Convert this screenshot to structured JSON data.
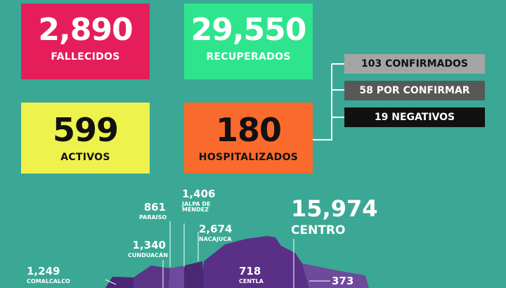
{
  "cards": {
    "fallecidos": {
      "value": "2,890",
      "label": "FALLECIDOS",
      "color": "#e51e5b"
    },
    "recuperados": {
      "value": "29,550",
      "label": "RECUPERADOS",
      "color": "#2ee58d"
    },
    "activos": {
      "value": "599",
      "label": "ACTIVOS",
      "color": "#eef24d"
    },
    "hospitalizados": {
      "value": "180",
      "label": "HOSPITALIZADOS",
      "color": "#fb6a2d"
    }
  },
  "hospital_breakdown": {
    "confirmados": "103 CONFIRMADOS",
    "por_confirmar": "58 POR CONFIRMAR",
    "negativos": "19 NEGATIVOS"
  },
  "municipios": {
    "paraiso": {
      "value": "861",
      "name": "PARAISO"
    },
    "jalpa": {
      "value": "1,406",
      "name_line1": "JALPA DE",
      "name_line2": "MENDEZ"
    },
    "nacajuca": {
      "value": "2,674",
      "name": "NACAJUCA"
    },
    "cunduacan": {
      "value": "1,340",
      "name": "CUNDUACÁN"
    },
    "comalcalco": {
      "value": "1,249",
      "name": "COMALCALCO"
    },
    "centla": {
      "value": "718",
      "name": "CENTLA"
    },
    "centro": {
      "value": "15,974",
      "name": "CENTRO"
    },
    "extra": {
      "value": "373"
    }
  },
  "colors": {
    "background": "#3aa894",
    "map_dark": "#5a2f86",
    "map_light": "#6f4a9c"
  }
}
